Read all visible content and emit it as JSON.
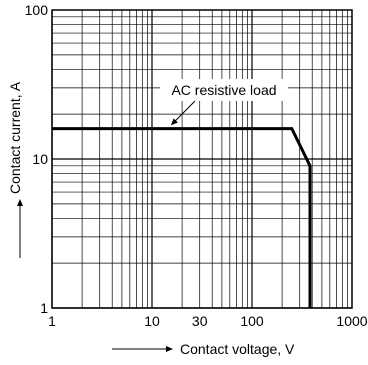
{
  "chart_data": {
    "type": "line",
    "x_scale": "log",
    "y_scale": "log",
    "xlim": [
      1,
      1000
    ],
    "ylim": [
      1,
      100
    ],
    "x_ticks": [
      {
        "value": 1,
        "label": "1"
      },
      {
        "value": 10,
        "label": "10"
      },
      {
        "value": 30,
        "label": "30"
      },
      {
        "value": 100,
        "label": "100"
      },
      {
        "value": 1000,
        "label": "1000"
      }
    ],
    "y_ticks": [
      {
        "value": 1,
        "label": "1"
      },
      {
        "value": 10,
        "label": "10"
      },
      {
        "value": 100,
        "label": "100"
      }
    ],
    "xlabel": "Contact voltage, V",
    "ylabel": "Contact current, A",
    "grid": true,
    "series": [
      {
        "name": "AC resistive load",
        "x": [
          1,
          250,
          380,
          380
        ],
        "y": [
          16,
          16,
          9,
          1
        ]
      }
    ],
    "annotation": {
      "text": "AC resistive load",
      "points_to": {
        "x": 15,
        "y": 16
      }
    },
    "colors": {
      "line": "#000000",
      "grid": "#000000",
      "background": "#ffffff"
    }
  }
}
